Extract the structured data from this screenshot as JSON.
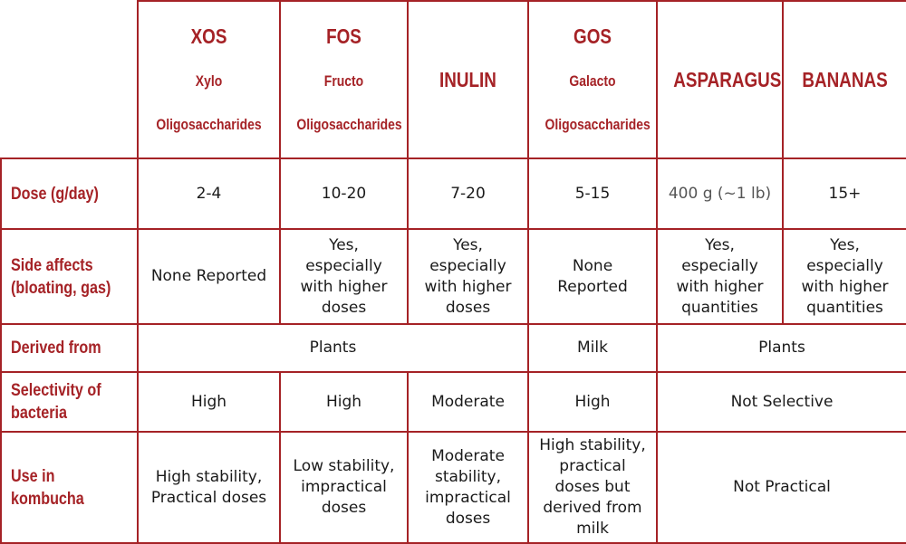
{
  "columns": [
    {
      "name": "XOS",
      "sub1": "Xylo",
      "sub2": "Oligosaccharides"
    },
    {
      "name": "FOS",
      "sub1": "Fructo",
      "sub2": "Oligosaccharides"
    },
    {
      "name": "INULIN",
      "sub1": "",
      "sub2": ""
    },
    {
      "name": "GOS",
      "sub1": "Galacto",
      "sub2": "Oligosaccharides"
    },
    {
      "name": "ASPARAGUS",
      "sub1": "",
      "sub2": ""
    },
    {
      "name": "BANANAS",
      "sub1": "",
      "sub2": ""
    }
  ],
  "rows": [
    {
      "label": "Dose (g/day)",
      "cells": [
        "2-4",
        "10-20",
        "7-20",
        "5-15",
        "400 g (~1 lb)",
        "15+"
      ]
    },
    {
      "label": "Side affects\n(bloating, gas)",
      "cells": [
        "None Reported",
        "Yes,\nespecially\nwith higher\ndoses",
        "Yes,\nespecially\nwith higher\ndoses",
        "None\nReported",
        "Yes,\nespecially\nwith higher\nquantities",
        "Yes,\nespecially\nwith higher\nquantities"
      ]
    },
    {
      "label": "Derived from",
      "cells": [
        "Plants",
        "Milk",
        "Plants"
      ]
    },
    {
      "label": "Selectivity of\nbacteria",
      "cells": [
        "High",
        "High",
        "Moderate",
        "High",
        "Not Selective"
      ]
    },
    {
      "label": "Use in kombucha",
      "cells": [
        "High stability,\nPractical doses",
        "Low stability,\nimpractical\ndoses",
        "Moderate\nstability,\nimpractical\ndoses",
        "High stability,\npractical\ndoses but\nderived from\nmilk",
        "Not Practical"
      ]
    }
  ]
}
